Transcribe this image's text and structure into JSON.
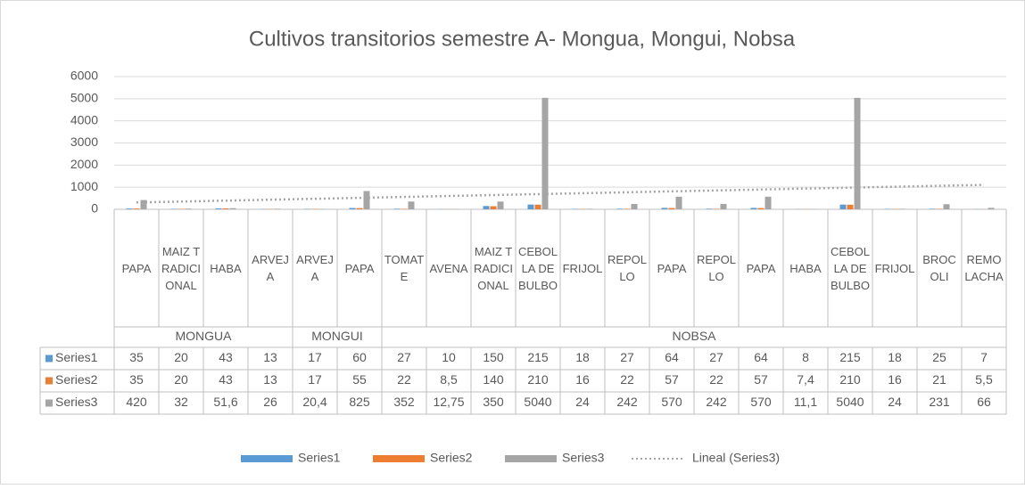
{
  "chart_data": {
    "type": "bar",
    "title": "Cultivos transitorios semestre A- Mongua, Mongui, Nobsa",
    "categories": [
      "PAPA",
      "MAIZ TRADICIONAL",
      "HABA",
      "ARVEJA",
      "ARVEJA",
      "PAPA",
      "TOMATE",
      "AVENA",
      "MAIZ TRADICIONAL",
      "CEBOLLA DE BULBO",
      "FRIJOL",
      "REPOLLO",
      "PAPA",
      "REPOLLO",
      "PAPA",
      "HABA",
      "CEBOLLA DE BULBO",
      "FRIJOL",
      "BROCOLI",
      "REMOLACHA"
    ],
    "groups": [
      {
        "name": "MONGUA",
        "count": 4
      },
      {
        "name": "MONGUI",
        "count": 2
      },
      {
        "name": "NOBSA",
        "count": 14
      }
    ],
    "series": [
      {
        "name": "Series1",
        "color": "#5b9bd5",
        "values": [
          35,
          20,
          43,
          13,
          17,
          60,
          27,
          10,
          150,
          215,
          18,
          27,
          64,
          27,
          64,
          8,
          215,
          18,
          25,
          7
        ]
      },
      {
        "name": "Series2",
        "color": "#ed7d31",
        "values": [
          35,
          20,
          43,
          13,
          17,
          55,
          22,
          8.5,
          140,
          210,
          16,
          22,
          57,
          22,
          57,
          7.4,
          210,
          16,
          21,
          5.5
        ],
        "value_labels": [
          "35",
          "20",
          "43",
          "13",
          "17",
          "55",
          "22",
          "8,5",
          "140",
          "210",
          "16",
          "22",
          "57",
          "22",
          "57",
          "7,4",
          "210",
          "16",
          "21",
          "5,5"
        ]
      },
      {
        "name": "Series3",
        "color": "#a5a5a5",
        "values": [
          420,
          32,
          51.6,
          26,
          20.4,
          825,
          352,
          12.75,
          350,
          5040,
          24,
          242,
          570,
          242,
          570,
          11.1,
          5040,
          24,
          231,
          66
        ],
        "value_labels": [
          "420",
          "32",
          "51,6",
          "26",
          "20,4",
          "825",
          "352",
          "12,75",
          "350",
          "5040",
          "24",
          "242",
          "570",
          "242",
          "570",
          "11,1",
          "5040",
          "24",
          "231",
          "66"
        ]
      }
    ],
    "trendline": {
      "name": "Lineal (Series3)",
      "color": "#a5a5a5"
    },
    "ylim": [
      0,
      6000
    ],
    "yticks": [
      0,
      1000,
      2000,
      3000,
      4000,
      5000,
      6000
    ],
    "grid": true,
    "legend": "bottom"
  }
}
